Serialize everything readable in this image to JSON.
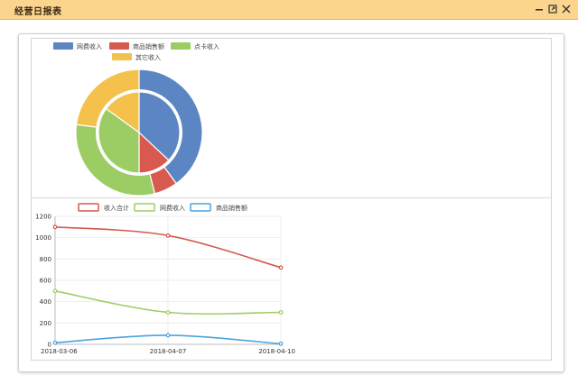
{
  "window": {
    "title": "经营日报表"
  },
  "window_buttons": {
    "minimize": "minimize-icon",
    "maximize": "maximize-icon",
    "close": "close-icon"
  },
  "chart_data": [
    {
      "type": "pie",
      "title": "",
      "variant": "nested-donut",
      "legend": [
        "网费收入",
        "商品销售额",
        "点卡收入",
        "其它收入"
      ],
      "legend_placement": "top",
      "colors": [
        "#5b86c3",
        "#d85a4f",
        "#9ccd64",
        "#f4c24c"
      ],
      "rings": [
        {
          "name": "",
          "values": [
            40,
            6,
            31,
            23
          ]
        },
        {
          "name": "",
          "values": [
            37,
            13,
            35,
            15
          ]
        }
      ]
    },
    {
      "type": "line",
      "title": "",
      "legend": [
        "收入合计",
        "网费收入",
        "商品销售额"
      ],
      "legend_placement": "top",
      "colors": [
        "#d45a4f",
        "#9ccd64",
        "#4aa3df"
      ],
      "x": [
        "2018-03-06",
        "2018-04-07",
        "2018-04-10"
      ],
      "series": [
        {
          "name": "收入合计",
          "values": [
            1100,
            1020,
            720
          ]
        },
        {
          "name": "网费收入",
          "values": [
            500,
            300,
            300
          ]
        },
        {
          "name": "商品销售额",
          "values": [
            15,
            85,
            5
          ]
        }
      ],
      "ylim": [
        0,
        1200
      ],
      "yticks": [
        0,
        200,
        400,
        600,
        800,
        1000,
        1200
      ],
      "grid": true
    }
  ]
}
